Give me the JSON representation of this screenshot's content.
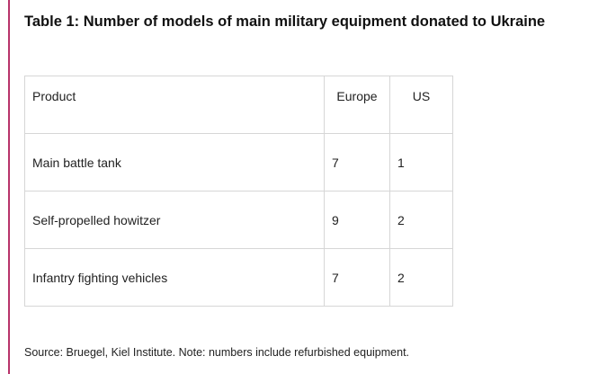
{
  "title": "Table 1: Number of models of main military equipment donated to Ukraine",
  "table": {
    "headers": [
      "Product",
      "Europe",
      "US"
    ],
    "rows": [
      [
        "Main battle tank",
        "7",
        "1"
      ],
      [
        "Self-propelled howitzer",
        "9",
        "2"
      ],
      [
        "Infantry fighting vehicles",
        "7",
        "2"
      ]
    ]
  },
  "note": "Source: Bruegel, Kiel Institute. Note: numbers include refurbished equipment.",
  "colors": {
    "accent_rule": "#b8336a",
    "border": "#d6d6d6"
  }
}
